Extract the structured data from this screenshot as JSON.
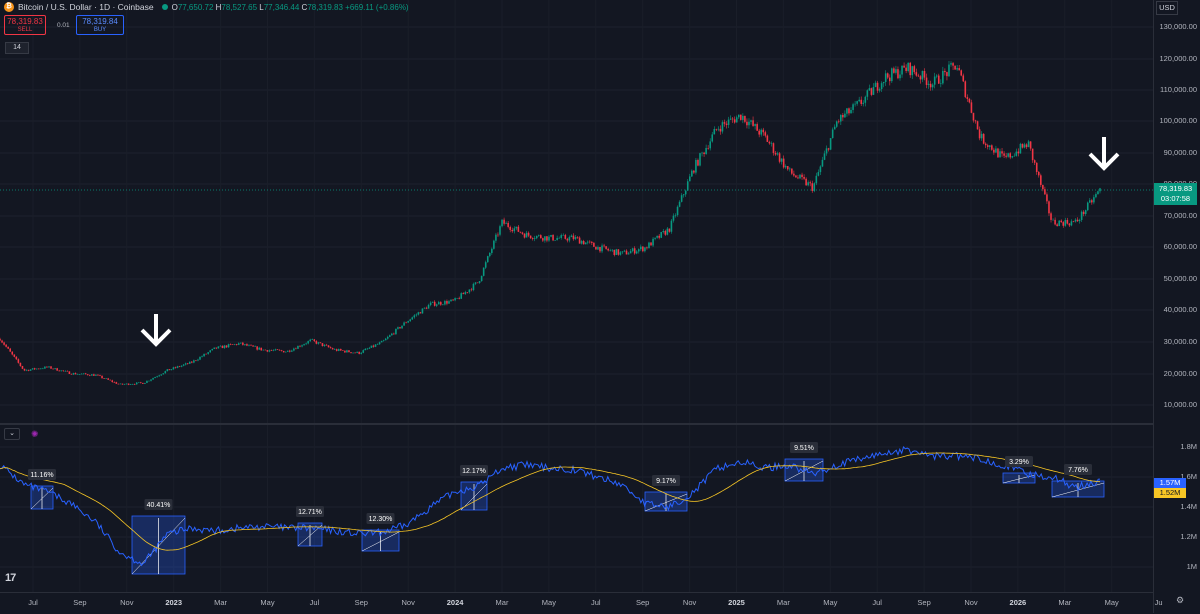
{
  "header": {
    "symbol_icon": "bitcoin-icon",
    "title": "Bitcoin / U.S. Dollar · 1D · Coinbase",
    "ohlc": [
      {
        "k": "O",
        "v": "77,650.72"
      },
      {
        "k": "H",
        "v": "78,527.65"
      },
      {
        "k": "L",
        "v": "77,346.44"
      },
      {
        "k": "C",
        "v": "78,319.83"
      }
    ],
    "change": "+669.11 (+0.86%)"
  },
  "trade": {
    "sell_price": "78,319.83",
    "sell_label": "SELL",
    "spread": "0.01",
    "buy_price": "78,319.84",
    "buy_label": "BUY"
  },
  "indicator_tag": "14",
  "currency": "USD",
  "price_axis": [
    "130,000.00",
    "120,000.00",
    "110,000.00",
    "100,000.00",
    "90,000.00",
    "80,000.00",
    "70,000.00",
    "60,000.00",
    "50,000.00",
    "40,000.00",
    "30,000.00",
    "20,000.00",
    "10,000.00"
  ],
  "last_price": {
    "price": "78,319.83",
    "countdown": "03:07:58"
  },
  "indicator_axis": [
    "1.8M",
    "1.6M",
    "1.4M",
    "1.2M",
    "1M"
  ],
  "indicator_labels": {
    "blue": "1.57M",
    "yellow": "1.52M"
  },
  "time_axis": [
    "Jul",
    "Sep",
    "Nov",
    "2023",
    "Mar",
    "May",
    "Jul",
    "Sep",
    "Nov",
    "2024",
    "Mar",
    "May",
    "Jul",
    "Sep",
    "Nov",
    "2025",
    "Mar",
    "May",
    "Jul",
    "Sep",
    "Nov",
    "2026",
    "Mar",
    "May",
    "Ju"
  ],
  "measurements": [
    "11.16%",
    "40.41%",
    "12.71%",
    "12.30%",
    "12.17%",
    "9.17%",
    "9.51%",
    "3.29%",
    "7.76%"
  ],
  "colors": {
    "up": "#089981",
    "down": "#f23645",
    "indicator": "#2962ff",
    "ma": "#f7c625",
    "background": "#131722"
  },
  "chart_data": [
    {
      "type": "candlestick",
      "x": [
        "2022-06",
        "2022-07",
        "2022-08",
        "2022-09",
        "2022-10",
        "2022-11",
        "2022-12",
        "2023-01",
        "2023-02",
        "2023-03",
        "2023-04",
        "2023-05",
        "2023-06",
        "2023-07",
        "2023-08",
        "2023-09",
        "2023-10",
        "2023-11",
        "2023-12",
        "2024-01",
        "2024-02",
        "2024-03",
        "2024-04",
        "2024-05",
        "2024-06",
        "2024-07",
        "2024-08",
        "2024-09",
        "2024-10",
        "2024-11",
        "2024-12",
        "2025-01",
        "2025-02",
        "2025-03",
        "2025-04",
        "2025-05",
        "2025-06",
        "2025-07",
        "2025-08",
        "2025-09",
        "2025-10",
        "2025-11",
        "2025-12",
        "2026-01",
        "2026-02",
        "2026-03",
        "2026-04"
      ],
      "values": [
        31000,
        21000,
        22000,
        20000,
        19500,
        16500,
        17000,
        21000,
        23500,
        28000,
        29500,
        27500,
        27000,
        30500,
        27500,
        26500,
        30000,
        36500,
        42000,
        43000,
        49000,
        68000,
        64000,
        63000,
        63000,
        60000,
        58000,
        60000,
        66000,
        85000,
        98000,
        102000,
        95000,
        84000,
        79000,
        100000,
        106000,
        114000,
        117000,
        112000,
        118000,
        95000,
        88000,
        93000,
        68000,
        68000,
        78319
      ],
      "yscale": "linear",
      "ylim": [
        5000,
        135000
      ]
    },
    {
      "type": "line",
      "series": [
        {
          "values": [
            1.68,
            1.55,
            1.5,
            1.42,
            1.3,
            1.1,
            1.02,
            1.22,
            1.26,
            1.24,
            1.26,
            1.27,
            1.26,
            1.26,
            1.24,
            1.22,
            1.23,
            1.28,
            1.4,
            1.5,
            1.54,
            1.66,
            1.68,
            1.66,
            1.65,
            1.6,
            1.55,
            1.42,
            1.4,
            1.5,
            1.66,
            1.7,
            1.66,
            1.68,
            1.62,
            1.68,
            1.72,
            1.76,
            1.78,
            1.74,
            1.74,
            1.72,
            1.68,
            1.62,
            1.6,
            1.53,
            1.57
          ]
        }
      ],
      "ylim": [
        0.95,
        1.85
      ]
    }
  ]
}
